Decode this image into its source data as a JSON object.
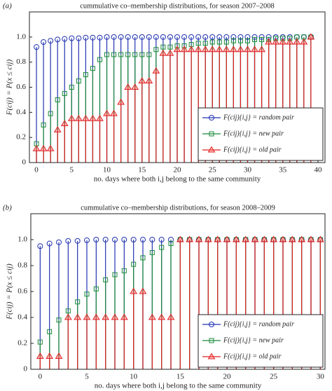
{
  "chart_data": [
    {
      "type": "stem",
      "panel_label": "(a)",
      "title": "cummulative co–membership distributions, for season 2007–2008",
      "xlabel": "no. days where both i,j belong to the same community",
      "ylabel": "F(cij) = P(x ≤ cij)",
      "xlim": [
        -1,
        41
      ],
      "ylim": [
        0,
        1.2
      ],
      "xticks": [
        0,
        5,
        10,
        15,
        20,
        25,
        30,
        35,
        40
      ],
      "yticks": [
        0,
        0.2,
        0.4,
        0.6,
        0.8,
        {
          "value": 1,
          "label": "1.0"
        }
      ],
      "legend": "lower right",
      "x": [
        0,
        1,
        2,
        3,
        4,
        5,
        6,
        7,
        8,
        9,
        10,
        11,
        12,
        13,
        14,
        15,
        16,
        17,
        18,
        19,
        20,
        21,
        22,
        23,
        24,
        25,
        26,
        27,
        28,
        29,
        30,
        31,
        32,
        33,
        34,
        35,
        36,
        37,
        38,
        39
      ],
      "series": [
        {
          "name": "F(cij){i,j} = random pair",
          "color": "#2233b0",
          "marker": "circle",
          "values": [
            0.92,
            0.96,
            0.97,
            0.98,
            0.985,
            0.99,
            0.99,
            0.995,
            0.995,
            0.995,
            1,
            1,
            1,
            1,
            1,
            1,
            1,
            1,
            1,
            1,
            1,
            1,
            1,
            1,
            1,
            1,
            1,
            1,
            1,
            1,
            1,
            1,
            1,
            1,
            1,
            1,
            1,
            1,
            1,
            1
          ]
        },
        {
          "name": "F(cij){i,j} = new pair",
          "color": "#1a8a3a",
          "marker": "square",
          "values": [
            0.15,
            0.3,
            0.39,
            0.5,
            0.55,
            0.6,
            0.65,
            0.7,
            0.75,
            0.82,
            0.86,
            0.86,
            0.86,
            0.86,
            0.86,
            0.86,
            0.86,
            0.9,
            0.92,
            0.92,
            0.93,
            0.93,
            0.94,
            0.95,
            0.95,
            0.96,
            0.96,
            0.96,
            0.97,
            0.97,
            0.97,
            0.98,
            0.98,
            0.98,
            0.99,
            0.99,
            0.99,
            1,
            1,
            1
          ]
        },
        {
          "name": "F(cij){i,j} = old pair",
          "color": "#e02020",
          "marker": "triangle",
          "values": [
            0.11,
            0.11,
            0.11,
            0.26,
            0.31,
            0.35,
            0.35,
            0.35,
            0.35,
            0.35,
            0.39,
            0.39,
            0.48,
            0.6,
            0.6,
            0.65,
            0.65,
            0.73,
            0.87,
            0.87,
            0.9,
            0.9,
            0.9,
            0.9,
            0.9,
            0.9,
            0.9,
            0.9,
            0.9,
            0.9,
            0.9,
            0.9,
            0.9,
            0.96,
            0.96,
            0.96,
            0.96,
            0.96,
            0.96,
            1
          ]
        }
      ]
    },
    {
      "type": "stem",
      "panel_label": "(b)",
      "title": "cummulative co–membership distributions, for season 2008–2009",
      "xlabel": "no. days where both i,j belong to the same community",
      "ylabel": "F(cij) = P(x ≤ cij)",
      "xlim": [
        -1,
        30.5
      ],
      "ylim": [
        0,
        1.2
      ],
      "xticks": [
        0,
        5,
        10,
        15,
        20,
        25,
        30
      ],
      "yticks": [
        0,
        0.2,
        0.4,
        0.6,
        0.8,
        {
          "value": 1,
          "label": "1.0"
        }
      ],
      "legend": "lower right",
      "x": [
        0,
        1,
        2,
        3,
        4,
        5,
        6,
        7,
        8,
        9,
        10,
        11,
        12,
        13,
        14,
        15,
        16,
        17,
        18,
        19,
        20,
        21,
        22,
        23,
        24,
        25,
        26,
        27,
        28,
        29,
        30
      ],
      "series": [
        {
          "name": "F(cij){i,j} = random pair",
          "color": "#2233b0",
          "marker": "circle",
          "values": [
            0.95,
            0.97,
            0.98,
            0.99,
            0.99,
            0.995,
            1,
            1,
            1,
            1,
            1,
            1,
            1,
            1,
            1,
            1,
            1,
            1,
            1,
            1,
            1,
            1,
            1,
            1,
            1,
            1,
            1,
            1,
            1,
            1,
            1
          ]
        },
        {
          "name": "F(cij){i,j} = new pair",
          "color": "#1a8a3a",
          "marker": "square",
          "values": [
            0.21,
            0.29,
            0.38,
            0.45,
            0.52,
            0.58,
            0.62,
            0.69,
            0.73,
            0.76,
            0.81,
            0.86,
            0.9,
            0.94,
            0.97,
            1,
            1,
            1,
            1,
            1,
            1,
            1,
            1,
            1,
            1,
            1,
            1,
            1,
            1,
            1,
            1
          ]
        },
        {
          "name": "F(cij){i,j} = old pair",
          "color": "#e02020",
          "marker": "triangle",
          "values": [
            0.1,
            0.1,
            0.1,
            0.4,
            0.4,
            0.4,
            0.4,
            0.4,
            0.4,
            0.4,
            0.6,
            0.6,
            0.4,
            0.4,
            0.4,
            1,
            1,
            1,
            1,
            1,
            1,
            1,
            1,
            1,
            1,
            1,
            1,
            1,
            1,
            1,
            1
          ]
        }
      ]
    }
  ]
}
